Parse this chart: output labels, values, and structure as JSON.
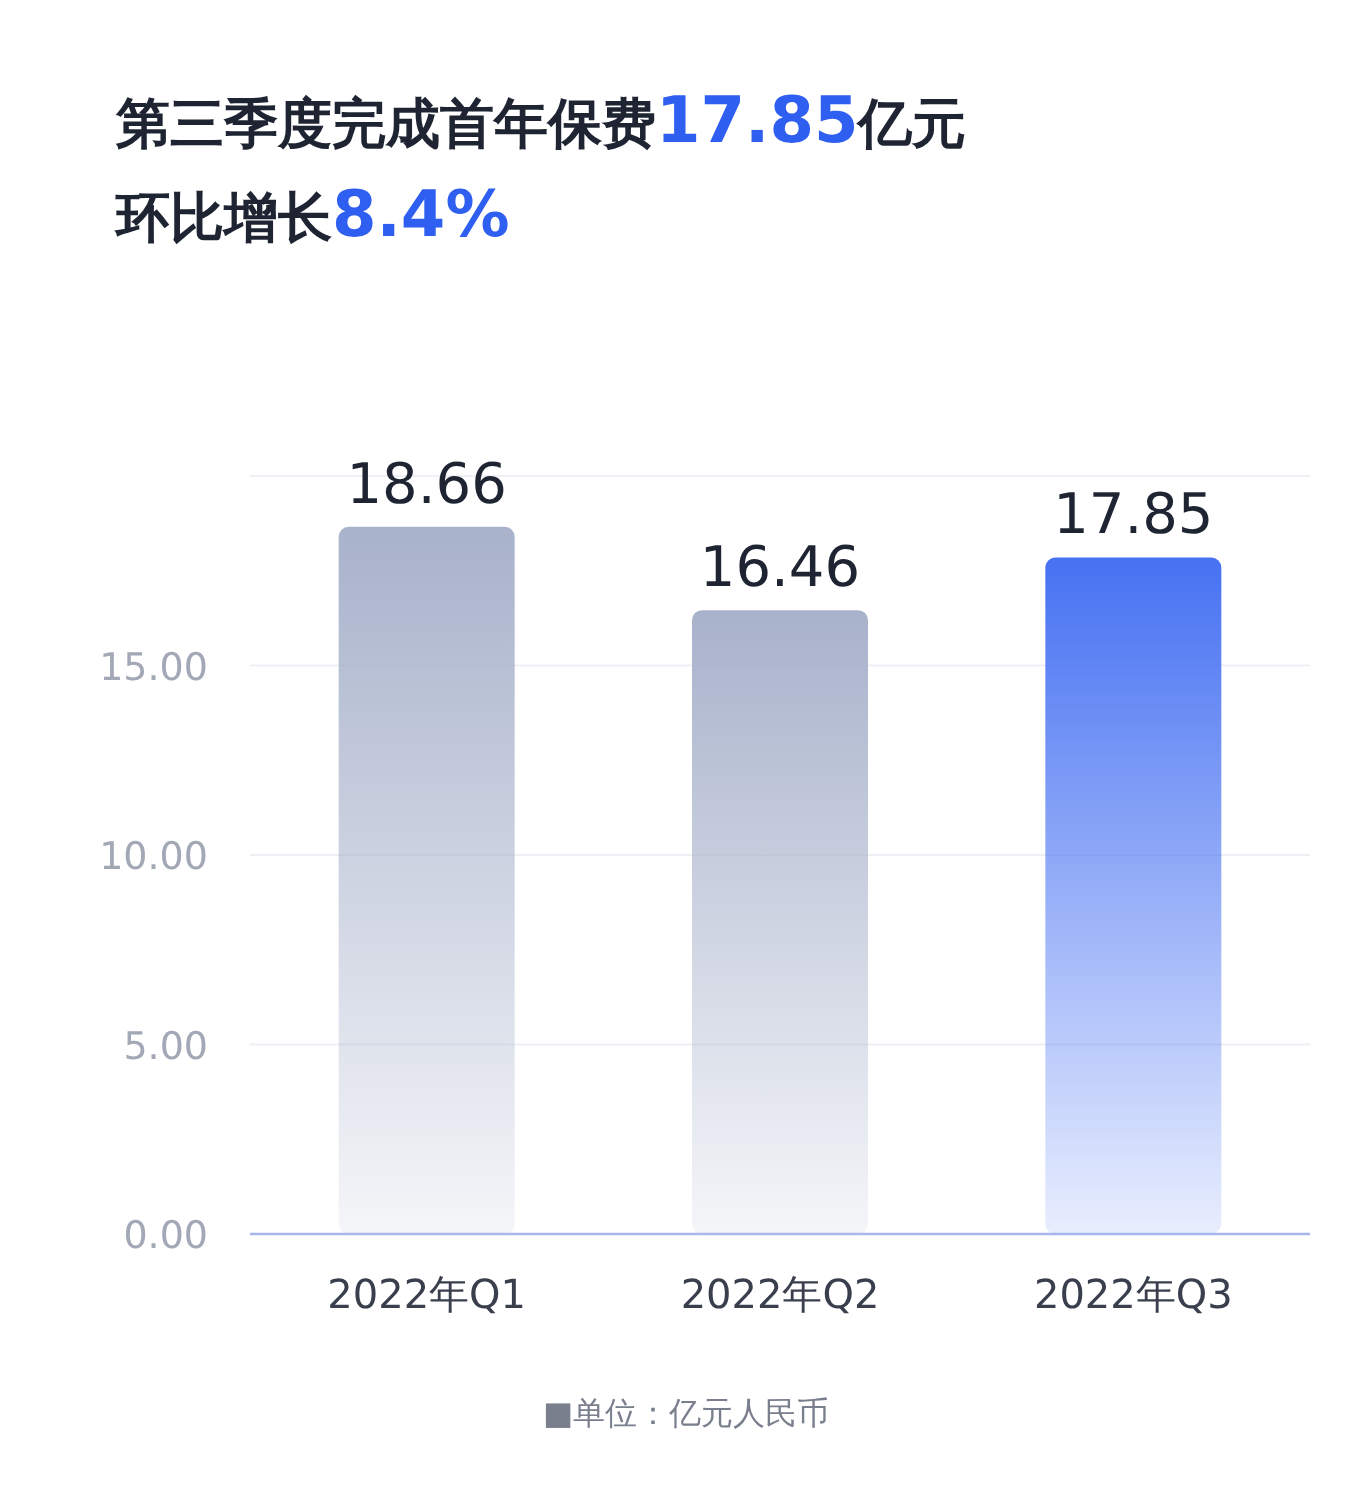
{
  "chart_data": {
    "type": "bar",
    "title": "第三季度完成首年保费**17.85**亿元",
    "subtitle": "环比增长**8.4%**",
    "categories": [
      "2022年Q1",
      "2022年Q2",
      "2022年Q3"
    ],
    "values": [
      18.66,
      16.46,
      17.85
    ],
    "colors": [
      "#a8b2cb",
      "#a8b2cb",
      "#4671f2"
    ],
    "ylim": [
      0,
      20
    ],
    "yticks": [
      {
        "value": 0,
        "label": "0.00"
      },
      {
        "value": 5,
        "label": "5.00"
      },
      {
        "value": 10,
        "label": "10.00"
      },
      {
        "value": 15,
        "label": "15.00"
      }
    ],
    "grid": "y",
    "data_labels": true,
    "annotations": [
      "■单位：亿元人民币"
    ]
  }
}
